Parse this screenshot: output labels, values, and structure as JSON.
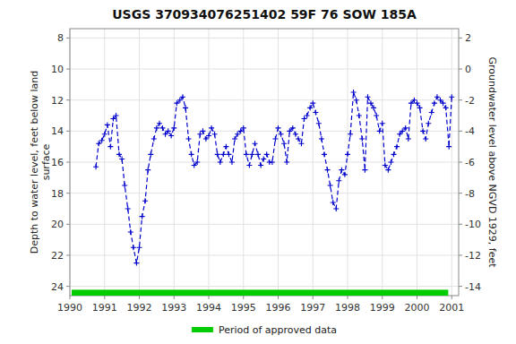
{
  "chart_data": {
    "type": "line",
    "title": "USGS 370934076251402 59F 76 SOW 185A",
    "y_label": "Depth to water level, feet below land\nsurface",
    "y2_label": "Groundwater level above NGVD 1929, feet",
    "x": [
      1990.75,
      1990.83,
      1990.92,
      1991.0,
      1991.08,
      1991.17,
      1991.25,
      1991.33,
      1991.42,
      1991.5,
      1991.58,
      1991.67,
      1991.75,
      1991.83,
      1991.92,
      1992.0,
      1992.08,
      1992.17,
      1992.25,
      1992.33,
      1992.42,
      1992.5,
      1992.58,
      1992.67,
      1992.75,
      1992.83,
      1992.92,
      1993.0,
      1993.08,
      1993.17,
      1993.25,
      1993.33,
      1993.42,
      1993.5,
      1993.58,
      1993.67,
      1993.75,
      1993.83,
      1993.92,
      1994.0,
      1994.08,
      1994.17,
      1994.25,
      1994.33,
      1994.42,
      1994.5,
      1994.58,
      1994.67,
      1994.75,
      1994.83,
      1994.92,
      1995.0,
      1995.08,
      1995.17,
      1995.25,
      1995.33,
      1995.42,
      1995.5,
      1995.58,
      1995.67,
      1995.75,
      1995.83,
      1995.92,
      1996.0,
      1996.08,
      1996.17,
      1996.25,
      1996.33,
      1996.42,
      1996.5,
      1996.58,
      1996.67,
      1996.75,
      1996.83,
      1996.92,
      1997.0,
      1997.08,
      1997.17,
      1997.25,
      1997.33,
      1997.42,
      1997.5,
      1997.58,
      1997.67,
      1997.75,
      1997.83,
      1997.92,
      1998.0,
      1998.08,
      1998.17,
      1998.25,
      1998.33,
      1998.42,
      1998.5,
      1998.58,
      1998.67,
      1998.75,
      1998.83,
      1998.92,
      1999.0,
      1999.08,
      1999.17,
      1999.25,
      1999.33,
      1999.42,
      1999.5,
      1999.58,
      1999.67,
      1999.75,
      1999.83,
      1999.92,
      2000.0,
      2000.08,
      2000.17,
      2000.25,
      2000.33,
      2000.42,
      2000.5,
      2000.58,
      2000.67,
      2000.75,
      2000.83,
      2000.92,
      2001.0
    ],
    "values": [
      16.3,
      14.8,
      14.6,
      14.2,
      13.6,
      15.0,
      13.2,
      13.0,
      15.5,
      15.8,
      17.5,
      19.0,
      20.5,
      21.5,
      22.5,
      21.5,
      19.5,
      18.5,
      16.5,
      15.5,
      14.5,
      13.8,
      13.5,
      13.8,
      14.2,
      14.0,
      14.3,
      13.8,
      12.2,
      12.0,
      11.8,
      12.5,
      14.5,
      15.5,
      16.2,
      16.0,
      14.2,
      14.0,
      14.5,
      14.3,
      13.8,
      14.2,
      15.5,
      16.0,
      15.5,
      15.0,
      15.5,
      16.0,
      14.5,
      14.2,
      14.0,
      13.8,
      15.5,
      16.2,
      15.5,
      14.8,
      15.5,
      16.2,
      15.8,
      15.5,
      16.0,
      16.0,
      14.5,
      13.8,
      14.2,
      14.8,
      16.0,
      14.0,
      13.8,
      14.2,
      14.5,
      14.8,
      13.2,
      13.0,
      12.5,
      12.2,
      12.8,
      13.5,
      14.5,
      15.5,
      16.5,
      17.5,
      18.6,
      19.0,
      17.2,
      16.5,
      16.8,
      15.5,
      14.2,
      11.5,
      12.0,
      13.0,
      14.5,
      16.5,
      11.8,
      12.2,
      12.5,
      13.0,
      14.0,
      13.5,
      16.2,
      16.5,
      16.0,
      15.5,
      15.0,
      14.2,
      14.0,
      13.8,
      14.5,
      12.2,
      12.0,
      12.2,
      12.5,
      14.0,
      14.5,
      13.5,
      12.8,
      12.2,
      11.8,
      12.0,
      12.2,
      12.5,
      15.0,
      11.8
    ],
    "color": "#0000cc",
    "line_style": "dashed",
    "marker": "plus",
    "xlim": [
      1990.0,
      2001.2
    ],
    "xticks": [
      1990,
      1991,
      1992,
      1993,
      1994,
      1995,
      1996,
      1997,
      1998,
      1999,
      2000,
      2001
    ],
    "ylim": [
      24.6,
      7.4
    ],
    "yticks": [
      8,
      10,
      12,
      14,
      16,
      18,
      20,
      22,
      24
    ],
    "y2lim": [
      -14.6,
      2.6
    ],
    "y2ticks": [
      2,
      0,
      -2,
      -4,
      -6,
      -8,
      -10,
      -12,
      -14
    ],
    "grid": true,
    "legend": "bottom",
    "bands": [
      {
        "name": "Period of approved data",
        "color": "#00cc00",
        "x_start": 1990.05,
        "x_end": 2000.9,
        "y": 24.22,
        "height": 0.38
      }
    ]
  }
}
